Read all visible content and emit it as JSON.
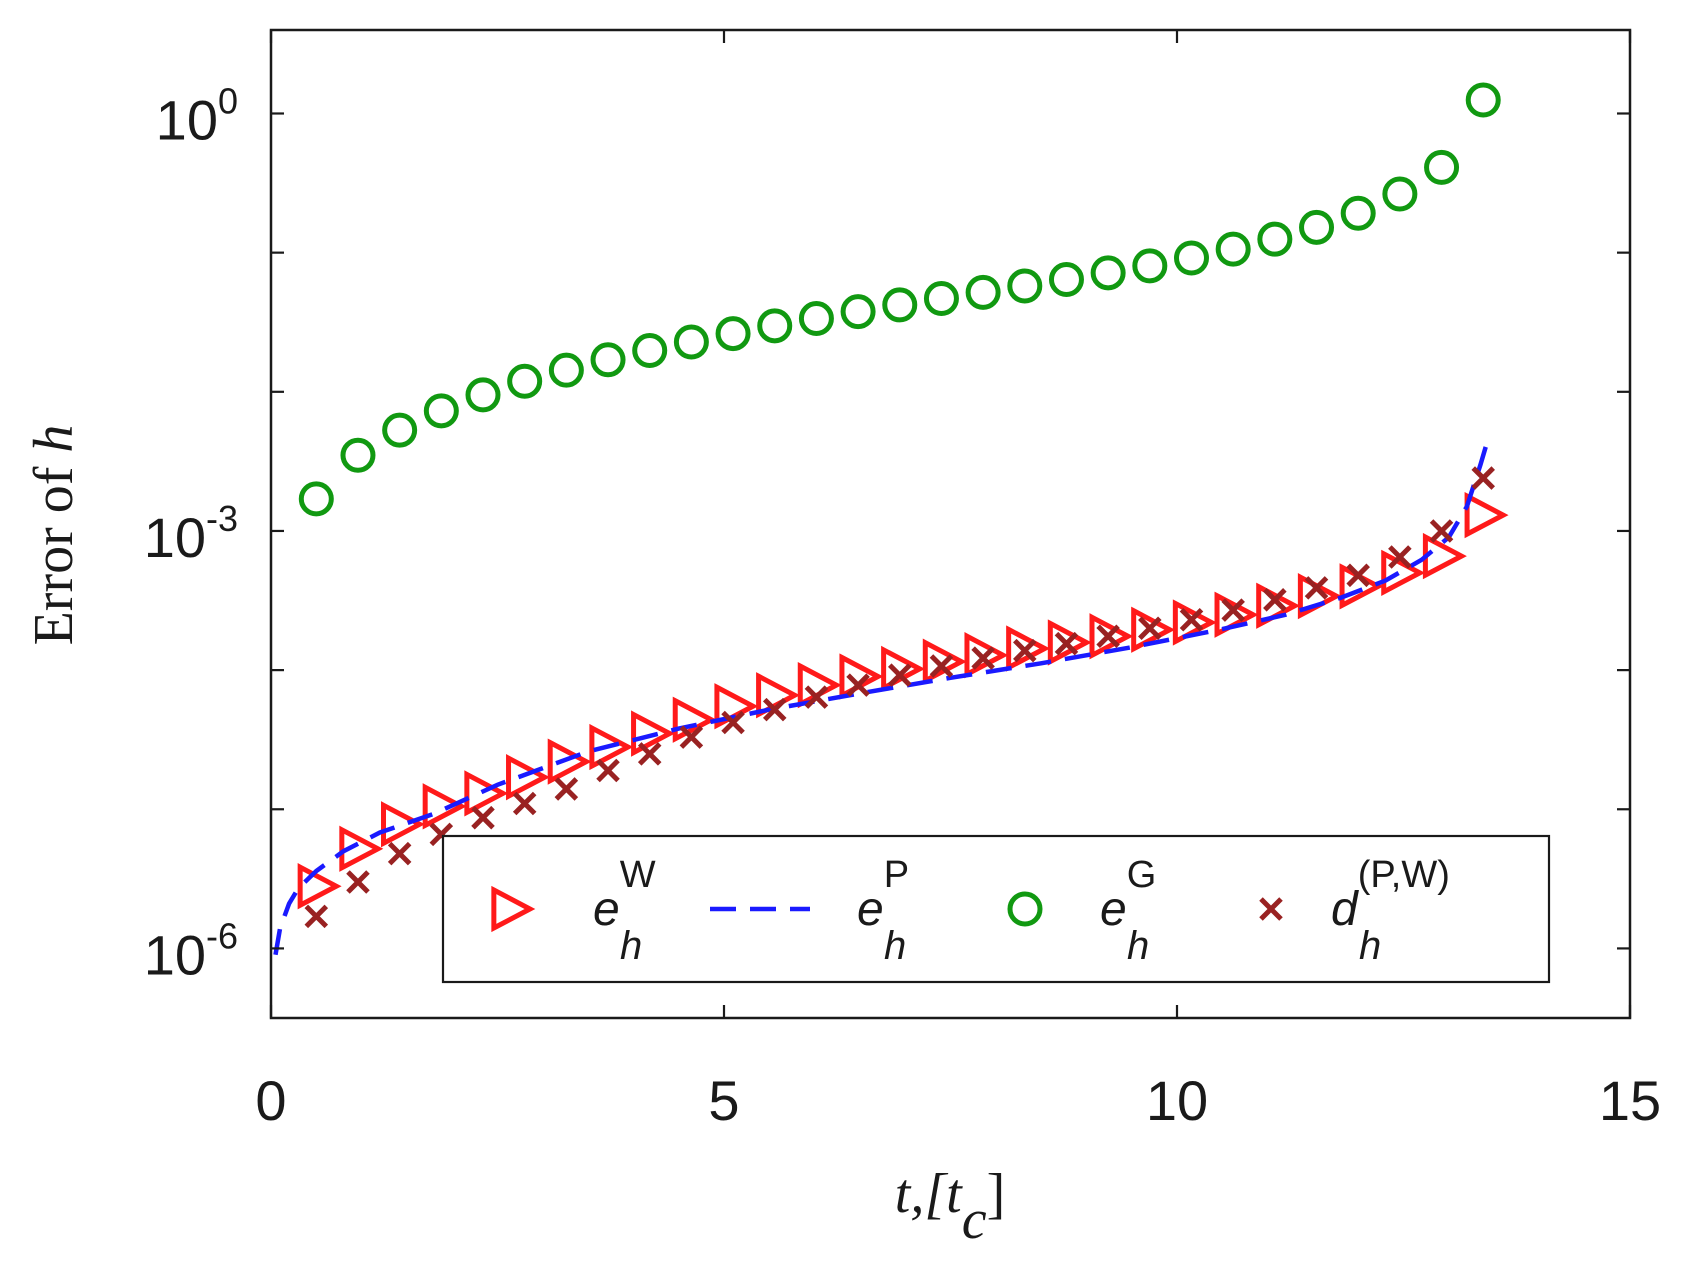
{
  "chart_data": {
    "type": "scatter",
    "title": "",
    "xlabel": {
      "main": "t,[t",
      "sub": "c",
      "close": "]"
    },
    "ylabel": {
      "prefix": "Error of ",
      "var": "h"
    },
    "xlim": [
      0,
      15
    ],
    "ylim_log10": [
      -6.5,
      0.6
    ],
    "x_ticks": [
      {
        "value": 0,
        "label": "0"
      },
      {
        "value": 5,
        "label": "5"
      },
      {
        "value": 10,
        "label": "10"
      },
      {
        "value": 15,
        "label": "15"
      }
    ],
    "y_ticks": [
      {
        "value": 1,
        "base": "10",
        "exp": "0"
      },
      {
        "value": 0.001,
        "base": "10",
        "exp": "-3"
      },
      {
        "value": 1e-06,
        "base": "10",
        "exp": "-6"
      }
    ],
    "y_minor_ticks_log10": [
      -5,
      -4,
      -2,
      -1
    ],
    "grid": false,
    "legend_position": "bottom",
    "series": [
      {
        "name": "e_h^W",
        "label_base": "e",
        "label_sub": "h",
        "label_sup": "W",
        "marker": "triangle-right",
        "color": "#ff1a1a",
        "x": [
          0.5,
          0.96,
          1.42,
          1.88,
          2.34,
          2.8,
          3.26,
          3.72,
          4.18,
          4.64,
          5.1,
          5.56,
          6.02,
          6.48,
          6.94,
          7.4,
          7.86,
          8.32,
          8.78,
          9.24,
          9.7,
          10.16,
          10.62,
          11.08,
          11.54,
          12.0,
          12.46,
          12.92,
          13.38
        ],
        "y": [
          2.8e-06,
          5.2e-06,
          7.8e-06,
          1.05e-05,
          1.3e-05,
          1.7e-05,
          2.2e-05,
          2.8e-05,
          3.5e-05,
          4.4e-05,
          5.5e-05,
          6.6e-05,
          7.8e-05,
          9e-05,
          0.000102,
          0.000115,
          0.000128,
          0.000143,
          0.000158,
          0.000175,
          0.000195,
          0.00022,
          0.00025,
          0.00029,
          0.00034,
          0.0004,
          0.0005,
          0.00066,
          0.0013
        ]
      },
      {
        "name": "e_h^P",
        "label_base": "e",
        "label_sub": "h",
        "label_sup": "P",
        "marker": "dashed-line",
        "color": "#1a1aff",
        "x": [
          0.05,
          0.1,
          0.2,
          0.3,
          0.5,
          0.8,
          1.2,
          1.8,
          2.5,
          3.5,
          4.5,
          5.5,
          6.5,
          7.5,
          8.5,
          9.5,
          10.5,
          11.2,
          11.8,
          12.3,
          12.7,
          13.0,
          13.2,
          13.35,
          13.45
        ],
        "y": [
          9e-07,
          1.4e-06,
          2.1e-06,
          2.7e-06,
          3.6e-06,
          5e-06,
          6.8e-06,
          9.3e-06,
          1.5e-05,
          2.6e-05,
          3.8e-05,
          5.2e-05,
          6.8e-05,
          8.8e-05,
          0.000112,
          0.000146,
          0.000197,
          0.00025,
          0.00033,
          0.00044,
          0.00062,
          0.0009,
          0.0015,
          0.003,
          0.005
        ]
      },
      {
        "name": "e_h^G",
        "label_base": "e",
        "label_sub": "h",
        "label_sup": "G",
        "marker": "circle",
        "color": "#119911",
        "x": [
          0.5,
          0.96,
          1.42,
          1.88,
          2.34,
          2.8,
          3.26,
          3.72,
          4.18,
          4.64,
          5.1,
          5.56,
          6.02,
          6.48,
          6.94,
          7.4,
          7.86,
          8.32,
          8.78,
          9.24,
          9.7,
          10.16,
          10.62,
          11.08,
          11.54,
          12.0,
          12.46,
          12.92,
          13.38
        ],
        "y": [
          0.0017,
          0.0035,
          0.0053,
          0.0073,
          0.0095,
          0.0119,
          0.0143,
          0.017,
          0.0198,
          0.0228,
          0.0262,
          0.0298,
          0.0336,
          0.0377,
          0.0421,
          0.0468,
          0.0518,
          0.0576,
          0.0641,
          0.0716,
          0.0804,
          0.0915,
          0.106,
          0.125,
          0.152,
          0.192,
          0.264,
          0.41,
          1.25
        ]
      },
      {
        "name": "d_h^(P,W)",
        "label_base": "d",
        "label_sub": "h",
        "label_sup": "(P,W)",
        "marker": "x",
        "color": "#992222",
        "x": [
          0.5,
          0.96,
          1.42,
          1.88,
          2.34,
          2.8,
          3.26,
          3.72,
          4.18,
          4.64,
          5.1,
          5.56,
          6.02,
          6.48,
          6.94,
          7.4,
          7.86,
          8.32,
          8.78,
          9.24,
          9.7,
          10.16,
          10.62,
          11.08,
          11.54,
          12.0,
          12.46,
          12.92,
          13.38
        ],
        "y": [
          1.7e-06,
          3e-06,
          4.8e-06,
          6.6e-06,
          8.7e-06,
          1.1e-05,
          1.4e-05,
          1.9e-05,
          2.5e-05,
          3.3e-05,
          4.2e-05,
          5.2e-05,
          6.4e-05,
          7.8e-05,
          9.2e-05,
          0.000107,
          0.000122,
          0.000138,
          0.000155,
          0.000175,
          0.0002,
          0.00023,
          0.00027,
          0.00032,
          0.00039,
          0.00048,
          0.00065,
          0.001,
          0.0024
        ]
      }
    ]
  }
}
